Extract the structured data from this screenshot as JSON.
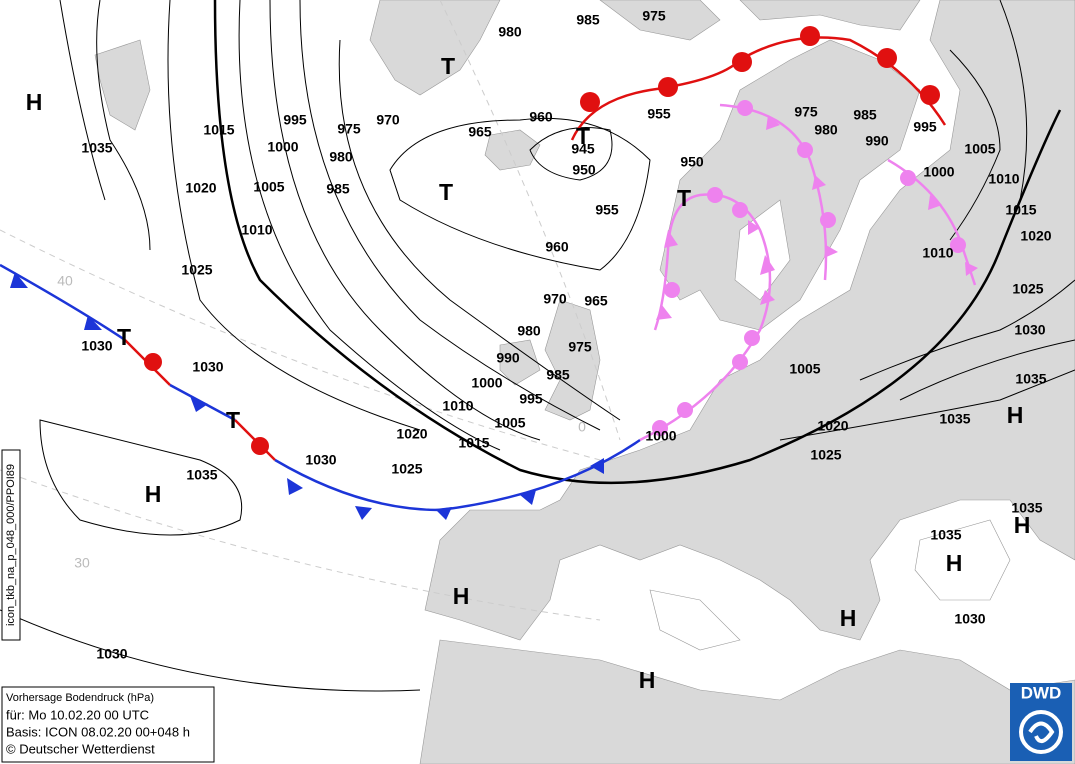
{
  "legend": {
    "line1": "Vorhersage Bodendruck (hPa)",
    "line2": "für:  Mo 10.02.20  00 UTC",
    "line3": "Basis: ICON  08.02.20 00+048 h",
    "line4": "© Deutscher Wetterdienst"
  },
  "side_label": "icon_tkb_na_p_048_000/PPOI89",
  "logo": "DWD",
  "grid_labels": [
    "40",
    "30",
    "0"
  ],
  "pressure_systems": [
    "H",
    "T",
    "T",
    "T",
    "T",
    "T",
    "T",
    "H",
    "H",
    "H",
    "H",
    "H",
    "H",
    "H"
  ],
  "isobar_labels": [
    "980",
    "985",
    "975",
    "1035",
    "1015",
    "995",
    "975",
    "970",
    "965",
    "960",
    "945",
    "955",
    "975",
    "985",
    "995",
    "1000",
    "980",
    "950",
    "950",
    "980",
    "990",
    "1005",
    "1020",
    "1005",
    "985",
    "1000",
    "1010",
    "955",
    "1015",
    "1010",
    "960",
    "1020",
    "1010",
    "1025",
    "1025",
    "970",
    "965",
    "980",
    "1030",
    "975",
    "1030",
    "990",
    "1030",
    "1005",
    "985",
    "1000",
    "1035",
    "995",
    "1010",
    "1035",
    "1005",
    "1020",
    "1020",
    "1000",
    "1015",
    "1025",
    "1030",
    "1025",
    "1035",
    "1035",
    "1035",
    "1030",
    "1030"
  ]
}
